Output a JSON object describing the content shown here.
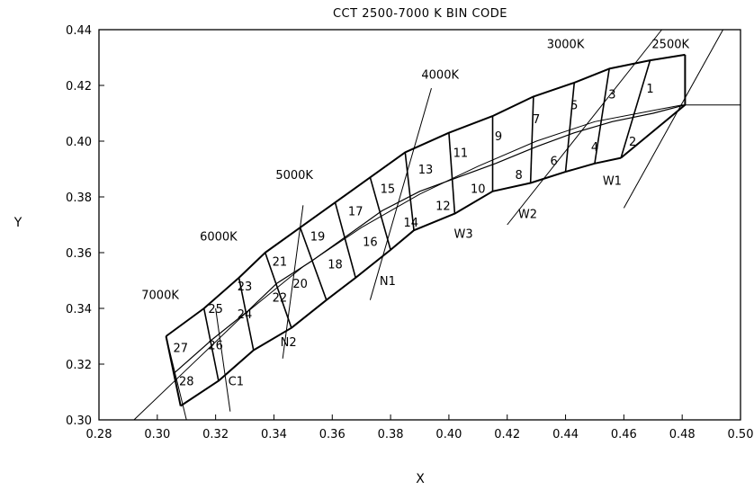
{
  "chart_data": {
    "type": "line",
    "title": "CCT 2500-7000 K BIN CODE",
    "xlabel": "X",
    "ylabel": "Y",
    "xlim": [
      0.28,
      0.5
    ],
    "ylim": [
      0.3,
      0.44
    ],
    "x_ticks": [
      "0.28",
      "0.30",
      "0.32",
      "0.34",
      "0.36",
      "0.38",
      "0.40",
      "0.42",
      "0.44",
      "0.46",
      "0.48",
      "0.50"
    ],
    "y_ticks": [
      "0.30",
      "0.32",
      "0.34",
      "0.36",
      "0.38",
      "0.40",
      "0.42",
      "0.44"
    ],
    "grid": false,
    "planckian_locus": [
      [
        0.292,
        0.3
      ],
      [
        0.31,
        0.318
      ],
      [
        0.33,
        0.338
      ],
      [
        0.35,
        0.355
      ],
      [
        0.37,
        0.369
      ],
      [
        0.39,
        0.381
      ],
      [
        0.41,
        0.391
      ],
      [
        0.43,
        0.4
      ],
      [
        0.45,
        0.407
      ],
      [
        0.47,
        0.411
      ],
      [
        0.48,
        0.413
      ],
      [
        0.5,
        0.413
      ]
    ],
    "bin_boundary_top": [
      [
        0.303,
        0.33
      ],
      [
        0.316,
        0.34
      ],
      [
        0.328,
        0.351
      ],
      [
        0.337,
        0.36
      ],
      [
        0.349,
        0.369
      ],
      [
        0.361,
        0.378
      ],
      [
        0.373,
        0.387
      ],
      [
        0.385,
        0.396
      ],
      [
        0.4,
        0.403
      ],
      [
        0.415,
        0.409
      ],
      [
        0.429,
        0.416
      ],
      [
        0.443,
        0.421
      ],
      [
        0.455,
        0.426
      ],
      [
        0.469,
        0.429
      ],
      [
        0.481,
        0.431
      ]
    ],
    "bin_boundary_middle": [
      [
        0.306,
        0.317
      ],
      [
        0.319,
        0.329
      ],
      [
        0.331,
        0.339
      ],
      [
        0.341,
        0.349
      ],
      [
        0.353,
        0.357
      ],
      [
        0.365,
        0.366
      ],
      [
        0.377,
        0.375
      ],
      [
        0.39,
        0.382
      ],
      [
        0.403,
        0.387
      ],
      [
        0.416,
        0.392
      ],
      [
        0.43,
        0.398
      ],
      [
        0.443,
        0.403
      ],
      [
        0.456,
        0.407
      ],
      [
        0.47,
        0.41
      ],
      [
        0.481,
        0.413
      ]
    ],
    "bin_boundary_bottom": [
      [
        0.308,
        0.305
      ],
      [
        0.321,
        0.314
      ],
      [
        0.333,
        0.325
      ],
      [
        0.346,
        0.333
      ],
      [
        0.358,
        0.343
      ],
      [
        0.368,
        0.351
      ],
      [
        0.38,
        0.361
      ],
      [
        0.388,
        0.368
      ],
      [
        0.402,
        0.374
      ],
      [
        0.415,
        0.382
      ],
      [
        0.428,
        0.385
      ],
      [
        0.44,
        0.389
      ],
      [
        0.45,
        0.392
      ],
      [
        0.459,
        0.394
      ]
    ],
    "bin_labels": [
      {
        "label": "1",
        "x": 0.469,
        "y": 0.419
      },
      {
        "label": "2",
        "x": 0.463,
        "y": 0.4
      },
      {
        "label": "3",
        "x": 0.456,
        "y": 0.417
      },
      {
        "label": "4",
        "x": 0.45,
        "y": 0.398
      },
      {
        "label": "5",
        "x": 0.443,
        "y": 0.413
      },
      {
        "label": "6",
        "x": 0.436,
        "y": 0.393
      },
      {
        "label": "7",
        "x": 0.43,
        "y": 0.408
      },
      {
        "label": "8",
        "x": 0.424,
        "y": 0.388
      },
      {
        "label": "9",
        "x": 0.417,
        "y": 0.402
      },
      {
        "label": "10",
        "x": 0.41,
        "y": 0.383
      },
      {
        "label": "11",
        "x": 0.404,
        "y": 0.396
      },
      {
        "label": "12",
        "x": 0.398,
        "y": 0.377
      },
      {
        "label": "13",
        "x": 0.392,
        "y": 0.39
      },
      {
        "label": "14",
        "x": 0.387,
        "y": 0.371
      },
      {
        "label": "15",
        "x": 0.379,
        "y": 0.383
      },
      {
        "label": "16",
        "x": 0.373,
        "y": 0.364
      },
      {
        "label": "17",
        "x": 0.368,
        "y": 0.375
      },
      {
        "label": "18",
        "x": 0.361,
        "y": 0.356
      },
      {
        "label": "19",
        "x": 0.355,
        "y": 0.366
      },
      {
        "label": "20",
        "x": 0.349,
        "y": 0.349
      },
      {
        "label": "21",
        "x": 0.342,
        "y": 0.357
      },
      {
        "label": "22",
        "x": 0.342,
        "y": 0.344
      },
      {
        "label": "23",
        "x": 0.33,
        "y": 0.348
      },
      {
        "label": "24",
        "x": 0.33,
        "y": 0.338
      },
      {
        "label": "25",
        "x": 0.32,
        "y": 0.34
      },
      {
        "label": "26",
        "x": 0.32,
        "y": 0.327
      },
      {
        "label": "27",
        "x": 0.308,
        "y": 0.326
      },
      {
        "label": "28",
        "x": 0.31,
        "y": 0.314
      }
    ],
    "cct_lines": [
      {
        "label": "7000K",
        "from": [
          0.31,
          0.3
        ],
        "to": [
          0.303,
          0.33
        ],
        "label_at": [
          0.301,
          0.345
        ]
      },
      {
        "label": "6000K",
        "from": [
          0.325,
          0.303
        ],
        "to": [
          0.32,
          0.34
        ],
        "label_at": [
          0.321,
          0.366
        ]
      },
      {
        "label": "5000K",
        "from": [
          0.343,
          0.322
        ],
        "to": [
          0.35,
          0.377
        ],
        "label_at": [
          0.347,
          0.388
        ]
      },
      {
        "label": "4000K",
        "from": [
          0.373,
          0.343
        ],
        "to": [
          0.394,
          0.419
        ],
        "label_at": [
          0.397,
          0.424
        ]
      },
      {
        "label": "3000K",
        "from": [
          0.42,
          0.37
        ],
        "to": [
          0.473,
          0.44
        ],
        "label_at": [
          0.44,
          0.435
        ]
      },
      {
        "label": "2500K",
        "from": [
          0.46,
          0.376
        ],
        "to": [
          0.494,
          0.44
        ],
        "label_at": [
          0.476,
          0.435
        ]
      }
    ],
    "region_labels": [
      {
        "label": "W1",
        "x": 0.456,
        "y": 0.386
      },
      {
        "label": "W2",
        "x": 0.427,
        "y": 0.374
      },
      {
        "label": "W3",
        "x": 0.405,
        "y": 0.367
      },
      {
        "label": "N1",
        "x": 0.379,
        "y": 0.35
      },
      {
        "label": "N2",
        "x": 0.345,
        "y": 0.328
      },
      {
        "label": "C1",
        "x": 0.327,
        "y": 0.314
      }
    ]
  }
}
